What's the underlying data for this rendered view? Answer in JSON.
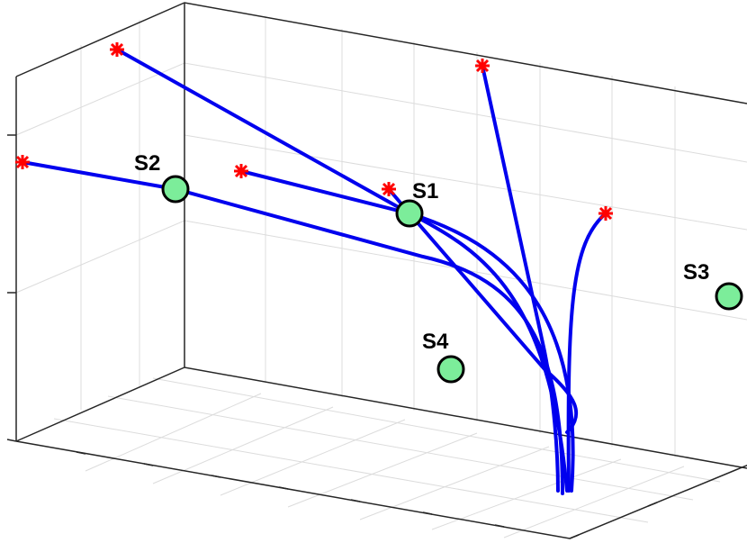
{
  "nodes": [
    {
      "label": "S1"
    },
    {
      "label": "S2"
    },
    {
      "label": "S3"
    },
    {
      "label": "S4"
    }
  ]
}
